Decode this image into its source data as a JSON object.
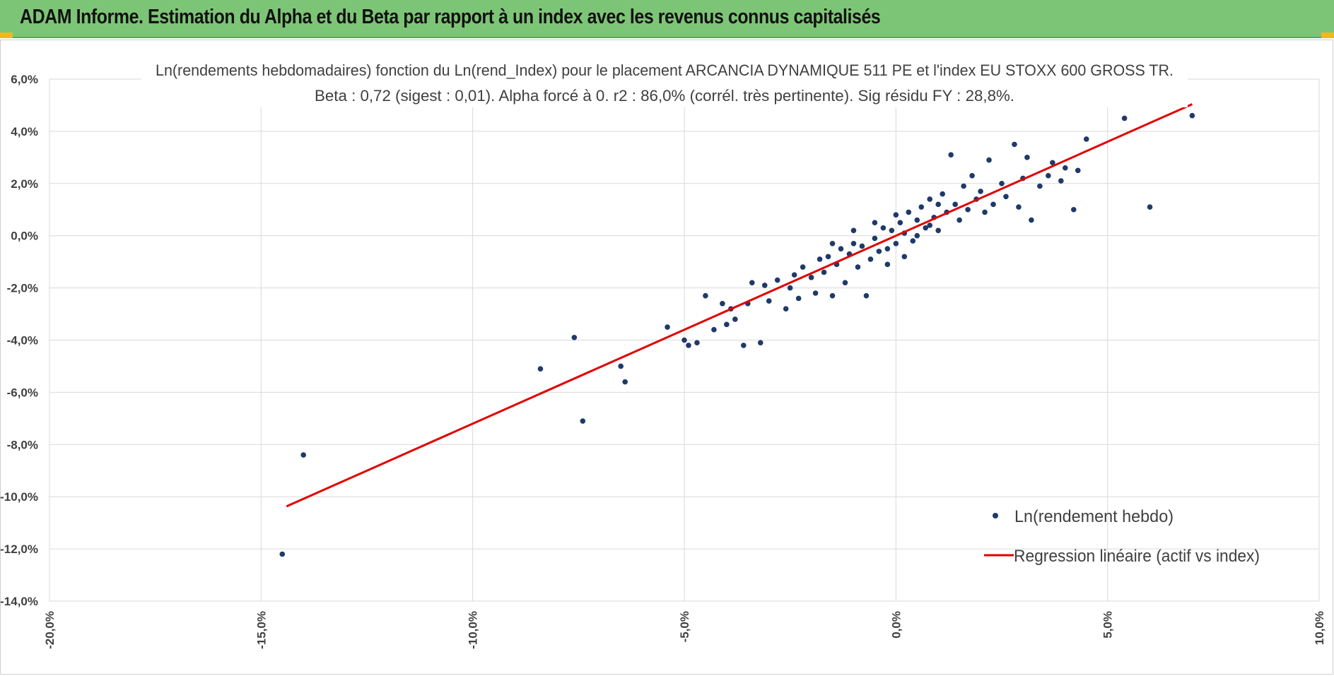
{
  "header": {
    "title": "ADAM Informe. Estimation du Alpha et du Beta par rapport à un index avec les revenus connus capitalisés"
  },
  "colors": {
    "header_bg": "#7dc576",
    "accent": "#f3b71b",
    "points": "#1f3a68",
    "regression": "#e00000",
    "grid": "#d9d9d9"
  },
  "chart_data": {
    "type": "scatter",
    "title": "Ln(rendements hebdomadaires) fonction du Ln(rend_Index) pour le placement ARCANCIA DYNAMIQUE 511 PE et l'index EU STOXX 600 GROSS TR.",
    "subtitle": "Beta : 0,72 (sigest : 0,01). Alpha forcé à 0. r2 : 86,0% (corrél. très pertinente). Sig résidu FY : 28,8%.",
    "xlabel": "",
    "ylabel": "",
    "xlim": [
      -20,
      10
    ],
    "ylim": [
      -14,
      6
    ],
    "x_ticks": [
      -20,
      -15,
      -10,
      -5,
      0,
      5,
      10
    ],
    "y_ticks": [
      -14,
      -12,
      -10,
      -8,
      -6,
      -4,
      -2,
      0,
      2,
      4,
      6
    ],
    "x_tick_labels": [
      "-20,0%",
      "-15,0%",
      "-10,0%",
      "-5,0%",
      "0,0%",
      "5,0%",
      "10,0%"
    ],
    "y_tick_labels": [
      "-14,0%",
      "-12,0%",
      "-10,0%",
      "-8,0%",
      "-6,0%",
      "-4,0%",
      "-2,0%",
      "0,0%",
      "2,0%",
      "4,0%",
      "6,0%"
    ],
    "grid": true,
    "legend_position": "bottom-right",
    "series": [
      {
        "name": "Ln(rendement hebdo)",
        "type": "scatter",
        "points": [
          [
            -14.5,
            -12.2
          ],
          [
            -14.0,
            -8.4
          ],
          [
            -8.4,
            -5.1
          ],
          [
            -7.6,
            -3.9
          ],
          [
            -7.4,
            -7.1
          ],
          [
            -6.5,
            -5.0
          ],
          [
            -6.4,
            -5.6
          ],
          [
            -5.4,
            -3.5
          ],
          [
            -5.0,
            -4.0
          ],
          [
            -4.9,
            -4.2
          ],
          [
            -4.7,
            -4.1
          ],
          [
            -4.5,
            -2.3
          ],
          [
            -4.3,
            -3.6
          ],
          [
            -4.1,
            -2.6
          ],
          [
            -4.0,
            -3.4
          ],
          [
            -3.9,
            -2.8
          ],
          [
            -3.8,
            -3.2
          ],
          [
            -3.6,
            -4.2
          ],
          [
            -3.5,
            -2.6
          ],
          [
            -3.4,
            -1.8
          ],
          [
            -3.2,
            -4.1
          ],
          [
            -3.1,
            -1.9
          ],
          [
            -3.0,
            -2.5
          ],
          [
            -2.8,
            -1.7
          ],
          [
            -2.6,
            -2.8
          ],
          [
            -2.5,
            -2.0
          ],
          [
            -2.4,
            -1.5
          ],
          [
            -2.3,
            -2.4
          ],
          [
            -2.2,
            -1.2
          ],
          [
            -2.0,
            -1.6
          ],
          [
            -1.9,
            -2.2
          ],
          [
            -1.8,
            -0.9
          ],
          [
            -1.7,
            -1.4
          ],
          [
            -1.6,
            -0.8
          ],
          [
            -1.5,
            -2.3
          ],
          [
            -1.4,
            -1.1
          ],
          [
            -1.3,
            -0.5
          ],
          [
            -1.2,
            -1.8
          ],
          [
            -1.1,
            -0.7
          ],
          [
            -1.0,
            -0.3
          ],
          [
            -0.9,
            -1.2
          ],
          [
            -0.8,
            -0.4
          ],
          [
            -0.7,
            -2.3
          ],
          [
            -0.6,
            -0.9
          ],
          [
            -0.5,
            -0.1
          ],
          [
            -0.4,
            -0.6
          ],
          [
            -0.3,
            0.3
          ],
          [
            -0.2,
            -1.1
          ],
          [
            -0.1,
            0.2
          ],
          [
            0.0,
            -0.3
          ],
          [
            0.1,
            0.5
          ],
          [
            0.2,
            0.1
          ],
          [
            0.3,
            0.9
          ],
          [
            0.4,
            -0.2
          ],
          [
            0.5,
            0.6
          ],
          [
            0.6,
            1.1
          ],
          [
            0.7,
            0.3
          ],
          [
            0.8,
            1.4
          ],
          [
            0.9,
            0.7
          ],
          [
            1.0,
            0.2
          ],
          [
            1.1,
            1.6
          ],
          [
            1.2,
            0.9
          ],
          [
            1.3,
            3.1
          ],
          [
            1.4,
            1.2
          ],
          [
            1.5,
            0.6
          ],
          [
            1.6,
            1.9
          ],
          [
            1.7,
            1.0
          ],
          [
            1.8,
            2.3
          ],
          [
            1.9,
            1.4
          ],
          [
            2.0,
            1.7
          ],
          [
            2.1,
            0.9
          ],
          [
            2.2,
            2.9
          ],
          [
            2.3,
            1.2
          ],
          [
            2.5,
            2.0
          ],
          [
            2.6,
            1.5
          ],
          [
            2.8,
            3.5
          ],
          [
            2.9,
            1.1
          ],
          [
            3.0,
            2.2
          ],
          [
            3.1,
            3.0
          ],
          [
            3.2,
            0.6
          ],
          [
            3.4,
            1.9
          ],
          [
            3.6,
            2.3
          ],
          [
            3.7,
            2.8
          ],
          [
            3.9,
            2.1
          ],
          [
            4.0,
            2.6
          ],
          [
            4.2,
            1.0
          ],
          [
            4.3,
            2.5
          ],
          [
            4.5,
            3.7
          ],
          [
            5.4,
            4.5
          ],
          [
            6.0,
            1.1
          ],
          [
            7.0,
            4.6
          ],
          [
            -0.5,
            0.5
          ],
          [
            0.2,
            -0.8
          ],
          [
            0.5,
            0.0
          ],
          [
            -1.0,
            0.2
          ],
          [
            1.0,
            1.2
          ],
          [
            -0.2,
            -0.5
          ],
          [
            0.8,
            0.4
          ],
          [
            0.0,
            0.8
          ],
          [
            -1.5,
            -0.3
          ]
        ]
      },
      {
        "name": "Regression linéaire (actif vs index)",
        "type": "line",
        "points": [
          [
            -14.4,
            -10.37
          ],
          [
            7.0,
            5.04
          ]
        ]
      }
    ]
  }
}
